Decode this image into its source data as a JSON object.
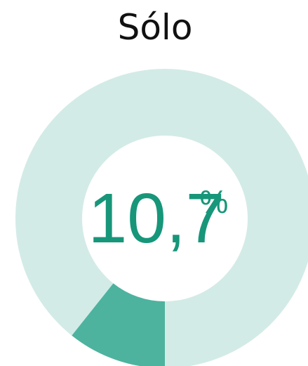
{
  "chart_data": {
    "type": "donut",
    "title": "Sólo",
    "values": [
      10.7
    ],
    "value_labels": [
      "10,7"
    ],
    "unit": "%",
    "color": "#4db39e",
    "track_color": "#d3ebe6",
    "label_color": "#17967a"
  }
}
